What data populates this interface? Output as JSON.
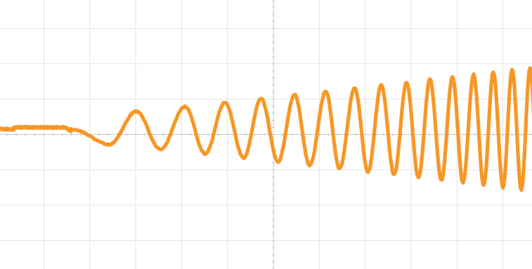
{
  "chart_data": {
    "type": "line",
    "title": "",
    "xlabel": "",
    "ylabel": "",
    "grid": true,
    "xlim": [
      0,
      12
    ],
    "ylim": [
      -4,
      4
    ],
    "series": [
      {
        "color": "#f7931e",
        "description_values": {
          "baseline": 0.15,
          "pre_sweep_level_x_range": [
            0.0,
            1.6
          ],
          "pre_sweep_level": 0.2,
          "start_amplitude": 0.35,
          "end_amplitude": 1.8,
          "peaks_x": [
            3.01,
            4.07,
            4.94,
            5.73,
            6.46,
            7.14,
            7.77,
            8.35,
            8.9,
            9.41,
            9.9,
            10.36,
            10.79,
            11.2,
            11.59,
            11.96
          ],
          "troughs_x": [
            2.41,
            3.53,
            4.51,
            5.35,
            6.1,
            6.79,
            7.44,
            8.06,
            8.63,
            9.16,
            9.66,
            10.13,
            10.58,
            11.0,
            11.4,
            11.78
          ],
          "end_x": 12
        }
      }
    ],
    "colors": {
      "grid": "#e3e3e3",
      "center_axis": "#c8c8c8",
      "trace": "#f7931e"
    }
  }
}
